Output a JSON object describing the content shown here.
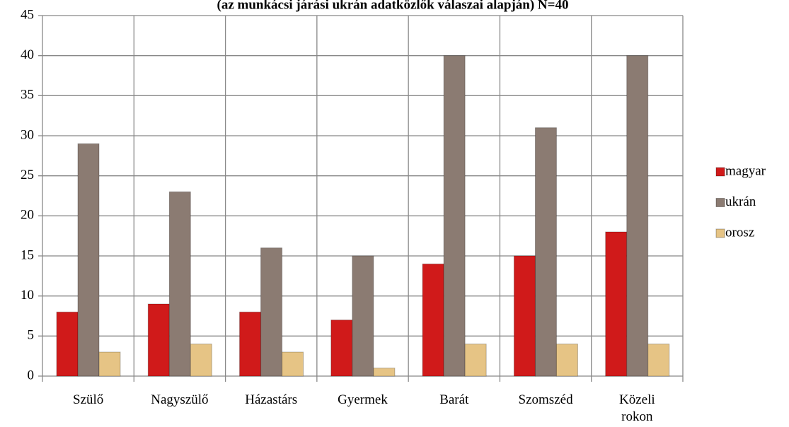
{
  "chart_data": {
    "type": "bar",
    "title": "(az munkácsi járási ukrán adatközlők válaszai alapján) N=40",
    "categories": [
      "Szülő",
      "Nagyszülő",
      "Házastárs",
      "Gyermek",
      "Barát",
      "Szomszéd",
      "Közeli rokon"
    ],
    "series": [
      {
        "name": "magyar",
        "color": "#d01a1a",
        "values": [
          8,
          9,
          8,
          7,
          14,
          15,
          18
        ]
      },
      {
        "name": "ukrán",
        "color": "#8b7b72",
        "values": [
          29,
          23,
          16,
          15,
          40,
          31,
          40
        ]
      },
      {
        "name": "orosz",
        "color": "#e6c485",
        "values": [
          3,
          4,
          3,
          1,
          4,
          4,
          4
        ]
      }
    ],
    "ylim": [
      0,
      45
    ],
    "yticks": [
      0,
      5,
      10,
      15,
      20,
      25,
      30,
      35,
      40,
      45
    ],
    "grid": true,
    "legend": "right"
  }
}
